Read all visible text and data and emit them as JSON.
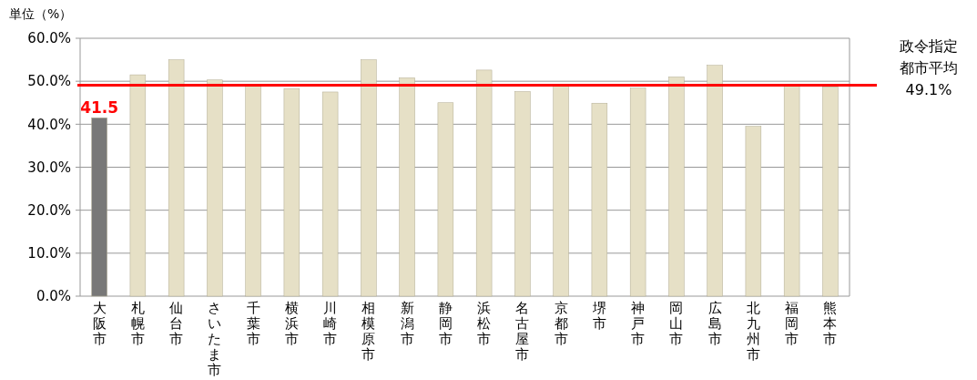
{
  "chart_data": {
    "type": "bar",
    "ylabel": "単位（%）",
    "categories": [
      "大阪市",
      "札幌市",
      "仙台市",
      "さいたま市",
      "千葉市",
      "横浜市",
      "川崎市",
      "相模原市",
      "新潟市",
      "静岡市",
      "浜松市",
      "名古屋市",
      "京都市",
      "堺市",
      "神戸市",
      "岡山市",
      "広島市",
      "北九州市",
      "福岡市",
      "熊本市"
    ],
    "values": [
      41.5,
      51.5,
      55.0,
      50.3,
      49.1,
      48.3,
      47.5,
      55.0,
      50.8,
      45.0,
      52.6,
      47.6,
      49.3,
      44.9,
      48.4,
      51.0,
      53.7,
      39.5,
      49.3,
      48.7
    ],
    "colors": [
      "#787878",
      "#e6e0c6",
      "#e6e0c6",
      "#e6e0c6",
      "#e6e0c6",
      "#e6e0c6",
      "#e6e0c6",
      "#e6e0c6",
      "#e6e0c6",
      "#e6e0c6",
      "#e6e0c6",
      "#e6e0c6",
      "#e6e0c6",
      "#e6e0c6",
      "#e6e0c6",
      "#e6e0c6",
      "#e6e0c6",
      "#e6e0c6",
      "#e6e0c6",
      "#e6e0c6"
    ],
    "value_labels": [
      "41.5",
      null,
      null,
      null,
      null,
      null,
      null,
      null,
      null,
      null,
      null,
      null,
      null,
      null,
      null,
      null,
      null,
      null,
      null,
      null
    ],
    "ylim": [
      0,
      60
    ],
    "yticks": [
      {
        "value": 0,
        "label": "0.0%"
      },
      {
        "value": 10,
        "label": "10.0%"
      },
      {
        "value": 20,
        "label": "20.0%"
      },
      {
        "value": 30,
        "label": "30.0%"
      },
      {
        "value": 40,
        "label": "40.0%"
      },
      {
        "value": 50,
        "label": "50.0%"
      },
      {
        "value": 60,
        "label": "60.0%"
      }
    ],
    "grid": "y",
    "ref_lines": [
      {
        "axis": "y",
        "value": 49.1,
        "label": "政令指定都市平均49.1%",
        "color": "#ff0000"
      }
    ]
  }
}
